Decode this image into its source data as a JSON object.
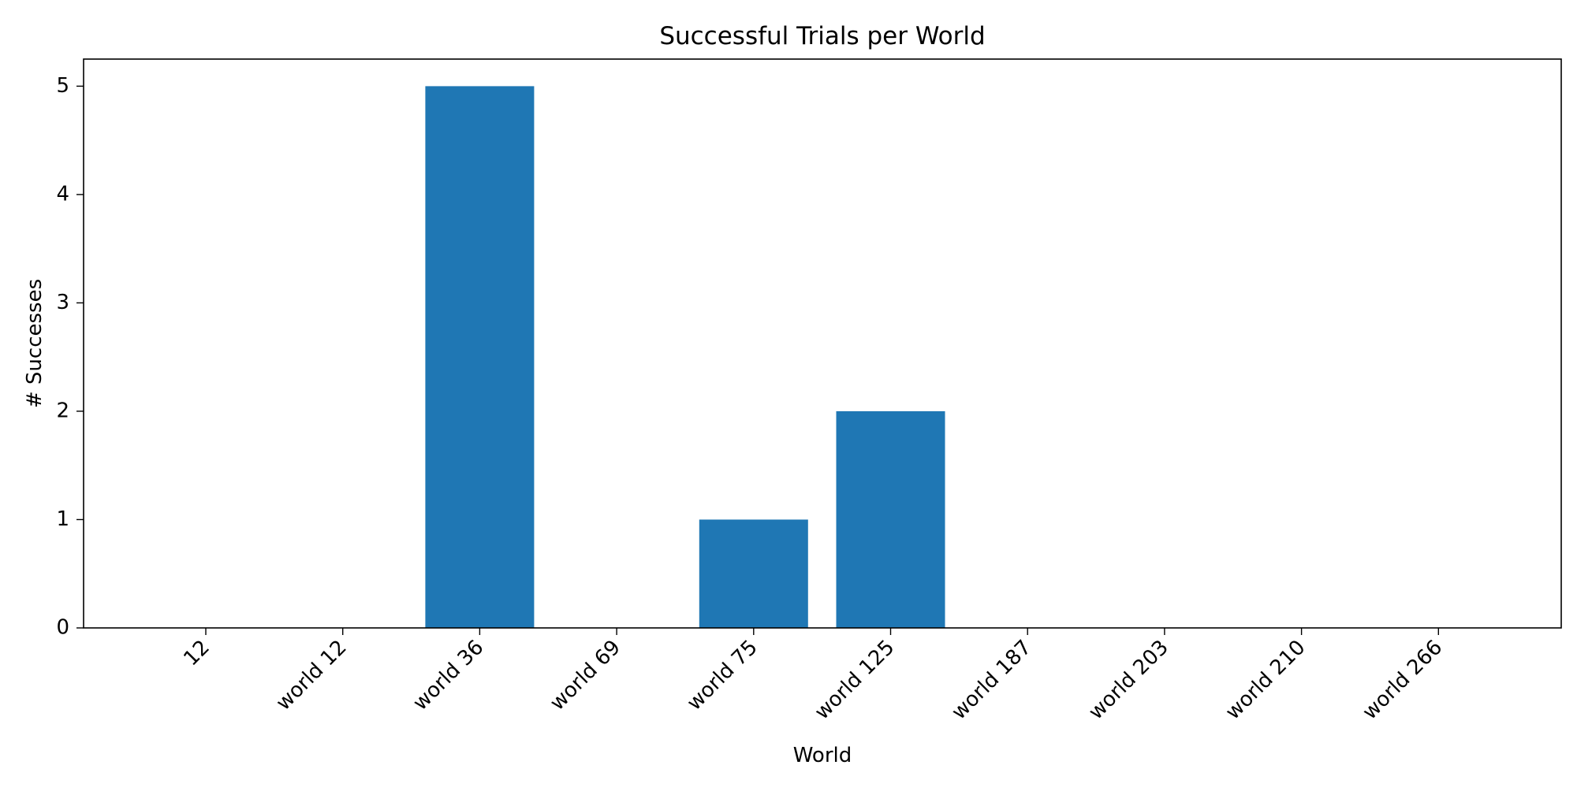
{
  "chart_data": {
    "type": "bar",
    "title": "Successful Trials per World",
    "xlabel": "World",
    "ylabel": "# Successes",
    "categories": [
      "12",
      "world 12",
      "world 36",
      "world 69",
      "world 75",
      "world 125",
      "world 187",
      "world 203",
      "world 210",
      "world 266"
    ],
    "values": [
      0,
      0,
      5,
      0,
      1,
      2,
      0,
      0,
      0,
      0
    ],
    "ylim": [
      0,
      5.25
    ],
    "yticks": [
      0,
      1,
      2,
      3,
      4,
      5
    ],
    "grid": false,
    "bar_color": "#1f77b4"
  }
}
